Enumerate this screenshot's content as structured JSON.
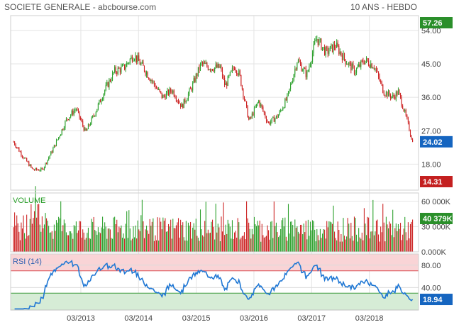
{
  "header": {
    "title": "SOCIETE GENERALE - abcbourse.com",
    "period": "10 ANS - HEBDO"
  },
  "colors": {
    "up": "#2ca02c",
    "down": "#cc2222",
    "rsi_line": "#1f77d4",
    "rsi_overbought_fill": "#f9d4d6",
    "rsi_oversold_fill": "#d6ecd6",
    "grid": "#e4e4e4",
    "badge_high": "#2a8f2a",
    "badge_last": "#1565c0",
    "badge_low": "#c42020"
  },
  "chart_data": [
    {
      "type": "line",
      "name": "price",
      "style": "candlestick",
      "title": "SOCIETE GENERALE - abcbourse.com",
      "subtitle": "10 ANS - HEBDO",
      "x_ticks": [
        "03/2013",
        "03/2014",
        "03/2015",
        "03/2016",
        "03/2017",
        "03/2018"
      ],
      "y_ticks": [
        "54.00",
        "45.00",
        "36.00",
        "27.00",
        "18.00"
      ],
      "ylim": [
        11,
        58
      ],
      "price_path": [
        [
          "01/2012",
          24.0
        ],
        [
          "03/2012",
          20.0
        ],
        [
          "05/2012",
          16.5
        ],
        [
          "07/2012",
          16.5
        ],
        [
          "09/2012",
          21.5
        ],
        [
          "11/2012",
          27.0
        ],
        [
          "12/2012",
          30.0
        ],
        [
          "02/2013",
          33.0
        ],
        [
          "04/2013",
          26.5
        ],
        [
          "06/2013",
          32.0
        ],
        [
          "08/2013",
          38.0
        ],
        [
          "10/2013",
          43.0
        ],
        [
          "12/2013",
          44.0
        ],
        [
          "02/2014",
          47.5
        ],
        [
          "04/2014",
          44.0
        ],
        [
          "06/2014",
          40.0
        ],
        [
          "08/2014",
          36.0
        ],
        [
          "10/2014",
          38.0
        ],
        [
          "12/2014",
          33.5
        ],
        [
          "02/2015",
          38.5
        ],
        [
          "04/2015",
          45.0
        ],
        [
          "06/2015",
          44.0
        ],
        [
          "08/2015",
          44.0
        ],
        [
          "09/2015",
          39.0
        ],
        [
          "11/2015",
          44.5
        ],
        [
          "12/2015",
          42.0
        ],
        [
          "02/2016",
          29.5
        ],
        [
          "04/2016",
          35.0
        ],
        [
          "06/2016",
          29.0
        ],
        [
          "08/2016",
          31.0
        ],
        [
          "10/2016",
          36.0
        ],
        [
          "12/2016",
          46.0
        ],
        [
          "02/2017",
          42.0
        ],
        [
          "04/2017",
          52.0
        ],
        [
          "06/2017",
          48.0
        ],
        [
          "08/2017",
          50.0
        ],
        [
          "10/2017",
          46.0
        ],
        [
          "12/2017",
          43.0
        ],
        [
          "02/2018",
          46.0
        ],
        [
          "04/2018",
          44.5
        ],
        [
          "06/2018",
          37.5
        ],
        [
          "08/2018",
          36.0
        ],
        [
          "09/2018",
          37.5
        ],
        [
          "10/2018",
          33.5
        ],
        [
          "11/2018",
          29.0
        ],
        [
          "12/2018",
          24.0
        ]
      ],
      "badges": {
        "high": "57.26",
        "last": "24.02",
        "low": "14.31"
      }
    },
    {
      "type": "bar",
      "name": "volume",
      "title": "VOLUME",
      "y_ticks": [
        "60 000K",
        "30 000K",
        "0.000K"
      ],
      "ylim": [
        0,
        70000
      ],
      "badge_last": "40 379K"
    },
    {
      "type": "line",
      "name": "rsi",
      "title": "RSI (14)",
      "y_ticks": [
        "80.00",
        "40.00"
      ],
      "ylim": [
        0,
        100
      ],
      "overbought": 70,
      "oversold": 30,
      "badge_last": "18.94"
    }
  ]
}
